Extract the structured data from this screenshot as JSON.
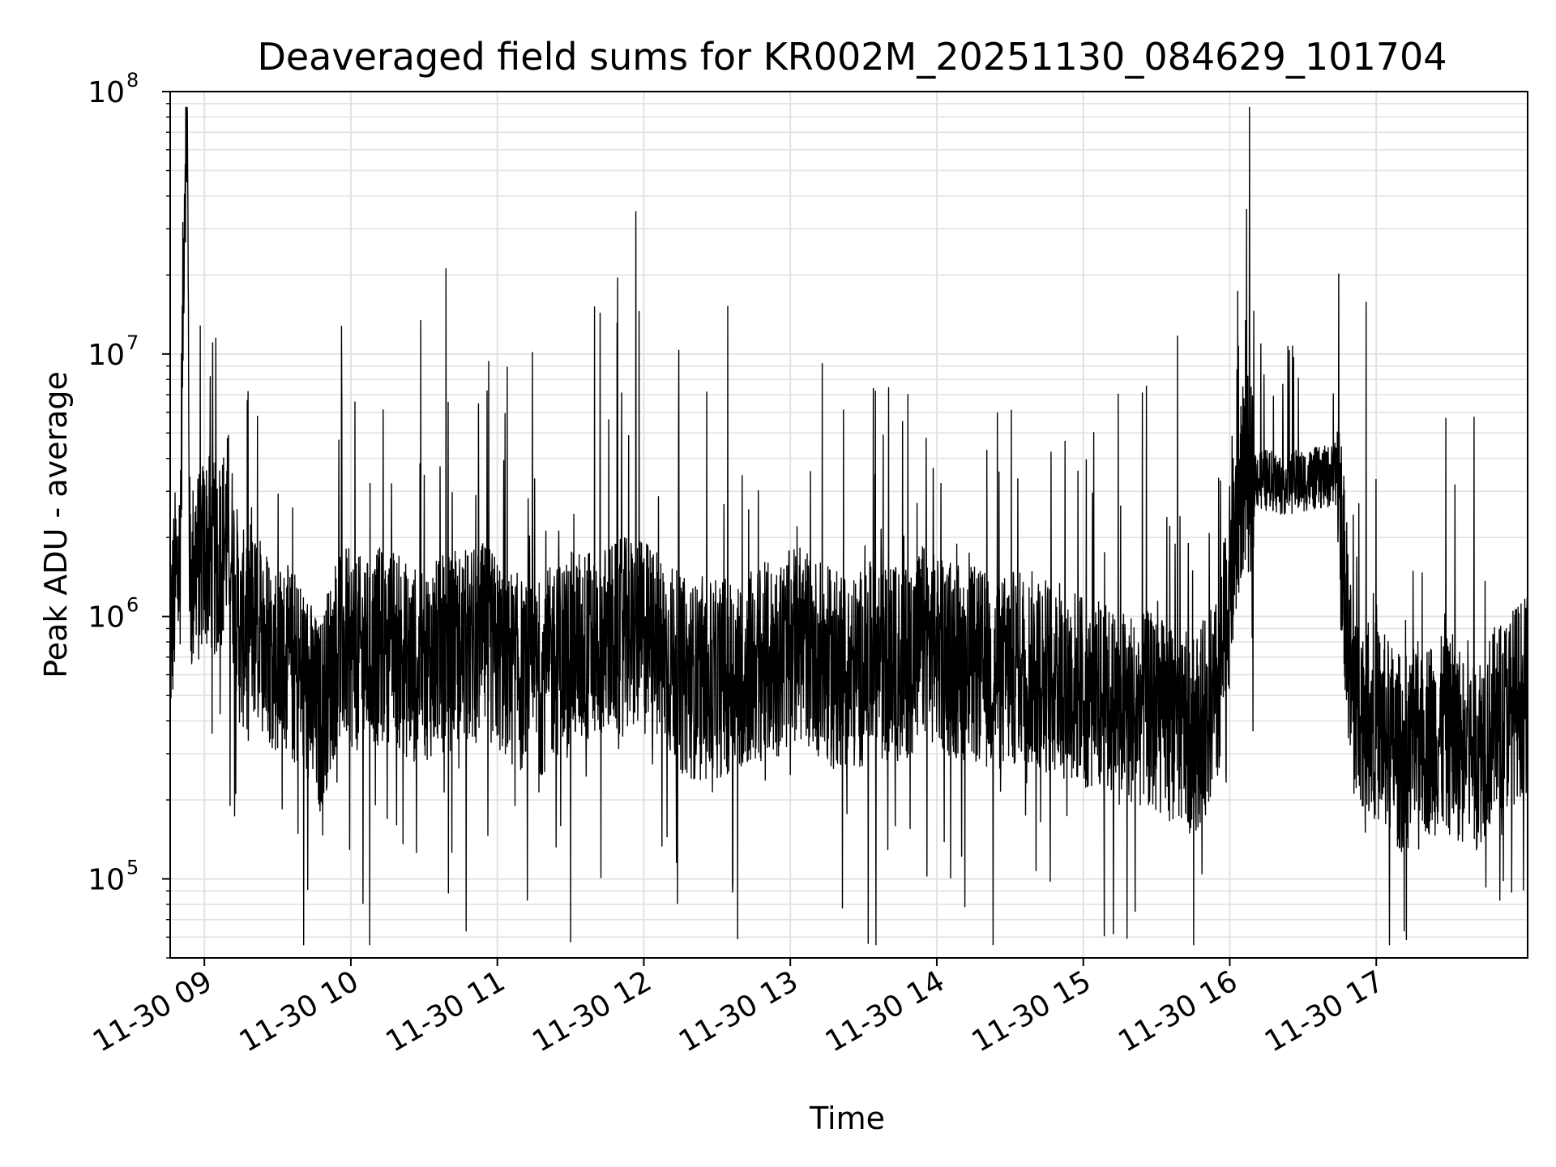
{
  "chart_data": {
    "type": "line",
    "title": "Deaveraged field sums for KR002M_20251130_084629_101704",
    "xlabel": "Time",
    "ylabel": "Peak ADU - average",
    "yscale": "log",
    "ylim": [
      50000,
      100000000
    ],
    "xlim": [
      "2025-11-30 08:46",
      "2025-11-30 18:02"
    ],
    "grid": true,
    "line_color": "#000000",
    "x_ticks": [
      {
        "t": "2025-11-30 09:00",
        "label": "11-30 09"
      },
      {
        "t": "2025-11-30 10:00",
        "label": "11-30 10"
      },
      {
        "t": "2025-11-30 11:00",
        "label": "11-30 11"
      },
      {
        "t": "2025-11-30 12:00",
        "label": "11-30 12"
      },
      {
        "t": "2025-11-30 13:00",
        "label": "11-30 13"
      },
      {
        "t": "2025-11-30 14:00",
        "label": "11-30 14"
      },
      {
        "t": "2025-11-30 15:00",
        "label": "11-30 15"
      },
      {
        "t": "2025-11-30 16:00",
        "label": "11-30 16"
      },
      {
        "t": "2025-11-30 17:00",
        "label": "11-30 17"
      }
    ],
    "y_ticks": [
      {
        "value": 100000,
        "base": "10",
        "exp": "5"
      },
      {
        "value": 1000000,
        "base": "10",
        "exp": "6"
      },
      {
        "value": 10000000,
        "base": "10",
        "exp": "7"
      },
      {
        "value": 100000000,
        "base": "10",
        "exp": "8"
      }
    ],
    "series": [
      {
        "x": [
          "2025-11-30 08:46",
          "2025-11-30 08:48",
          "2025-11-30 08:50",
          "2025-11-30 08:52",
          "2025-11-30 08:53",
          "2025-11-30 08:54",
          "2025-11-30 08:55",
          "2025-11-30 08:56",
          "2025-11-30 08:58",
          "2025-11-30 09:00",
          "2025-11-30 09:05",
          "2025-11-30 09:10",
          "2025-11-30 09:13",
          "2025-11-30 09:15",
          "2025-11-30 09:18",
          "2025-11-30 09:20",
          "2025-11-30 09:30",
          "2025-11-30 09:40",
          "2025-11-30 09:47",
          "2025-11-30 09:55",
          "2025-11-30 10:05",
          "2025-11-30 10:15",
          "2025-11-30 10:25",
          "2025-11-30 10:35",
          "2025-11-30 10:45",
          "2025-11-30 10:55",
          "2025-11-30 11:05",
          "2025-11-30 11:15",
          "2025-11-30 11:25",
          "2025-11-30 11:32",
          "2025-11-30 11:45",
          "2025-11-30 11:55",
          "2025-11-30 12:05",
          "2025-11-30 12:15",
          "2025-11-30 12:25",
          "2025-11-30 12:35",
          "2025-11-30 12:45",
          "2025-11-30 12:55",
          "2025-11-30 13:05",
          "2025-11-30 13:15",
          "2025-11-30 13:25",
          "2025-11-30 13:35",
          "2025-11-30 13:45",
          "2025-11-30 13:55",
          "2025-11-30 14:05",
          "2025-11-30 14:15",
          "2025-11-30 14:25",
          "2025-11-30 14:35",
          "2025-11-30 14:45",
          "2025-11-30 14:55",
          "2025-11-30 15:05",
          "2025-11-30 15:15",
          "2025-11-30 15:25",
          "2025-11-30 15:35",
          "2025-11-30 15:45",
          "2025-11-30 15:55",
          "2025-11-30 16:05",
          "2025-11-30 16:10",
          "2025-11-30 16:20",
          "2025-11-30 16:30",
          "2025-11-30 16:40",
          "2025-11-30 16:44",
          "2025-11-30 16:50",
          "2025-11-30 17:00",
          "2025-11-30 17:10",
          "2025-11-30 17:20",
          "2025-11-30 17:30",
          "2025-11-30 17:40",
          "2025-11-30 17:50",
          "2025-11-30 18:00"
        ],
        "y": [
          800000,
          1300000,
          1600000,
          60000000,
          72000000,
          1500000,
          1300000,
          1700000,
          1500000,
          1800000,
          1600000,
          2200000,
          1200000,
          800000,
          1100000,
          900000,
          700000,
          600000,
          400000,
          800000,
          700000,
          800000,
          650000,
          700000,
          750000,
          800000,
          650000,
          550000,
          700000,
          750000,
          800000,
          850000,
          800000,
          600000,
          550000,
          600000,
          650000,
          700000,
          800000,
          650000,
          600000,
          700000,
          650000,
          800000,
          700000,
          650000,
          600000,
          650000,
          600000,
          550000,
          500000,
          450000,
          450000,
          400000,
          350000,
          500000,
          3500000,
          3400000,
          3200000,
          3300000,
          3400000,
          3500000,
          500000,
          400000,
          300000,
          350000,
          350000,
          300000,
          400000,
          500000
        ]
      }
    ]
  }
}
